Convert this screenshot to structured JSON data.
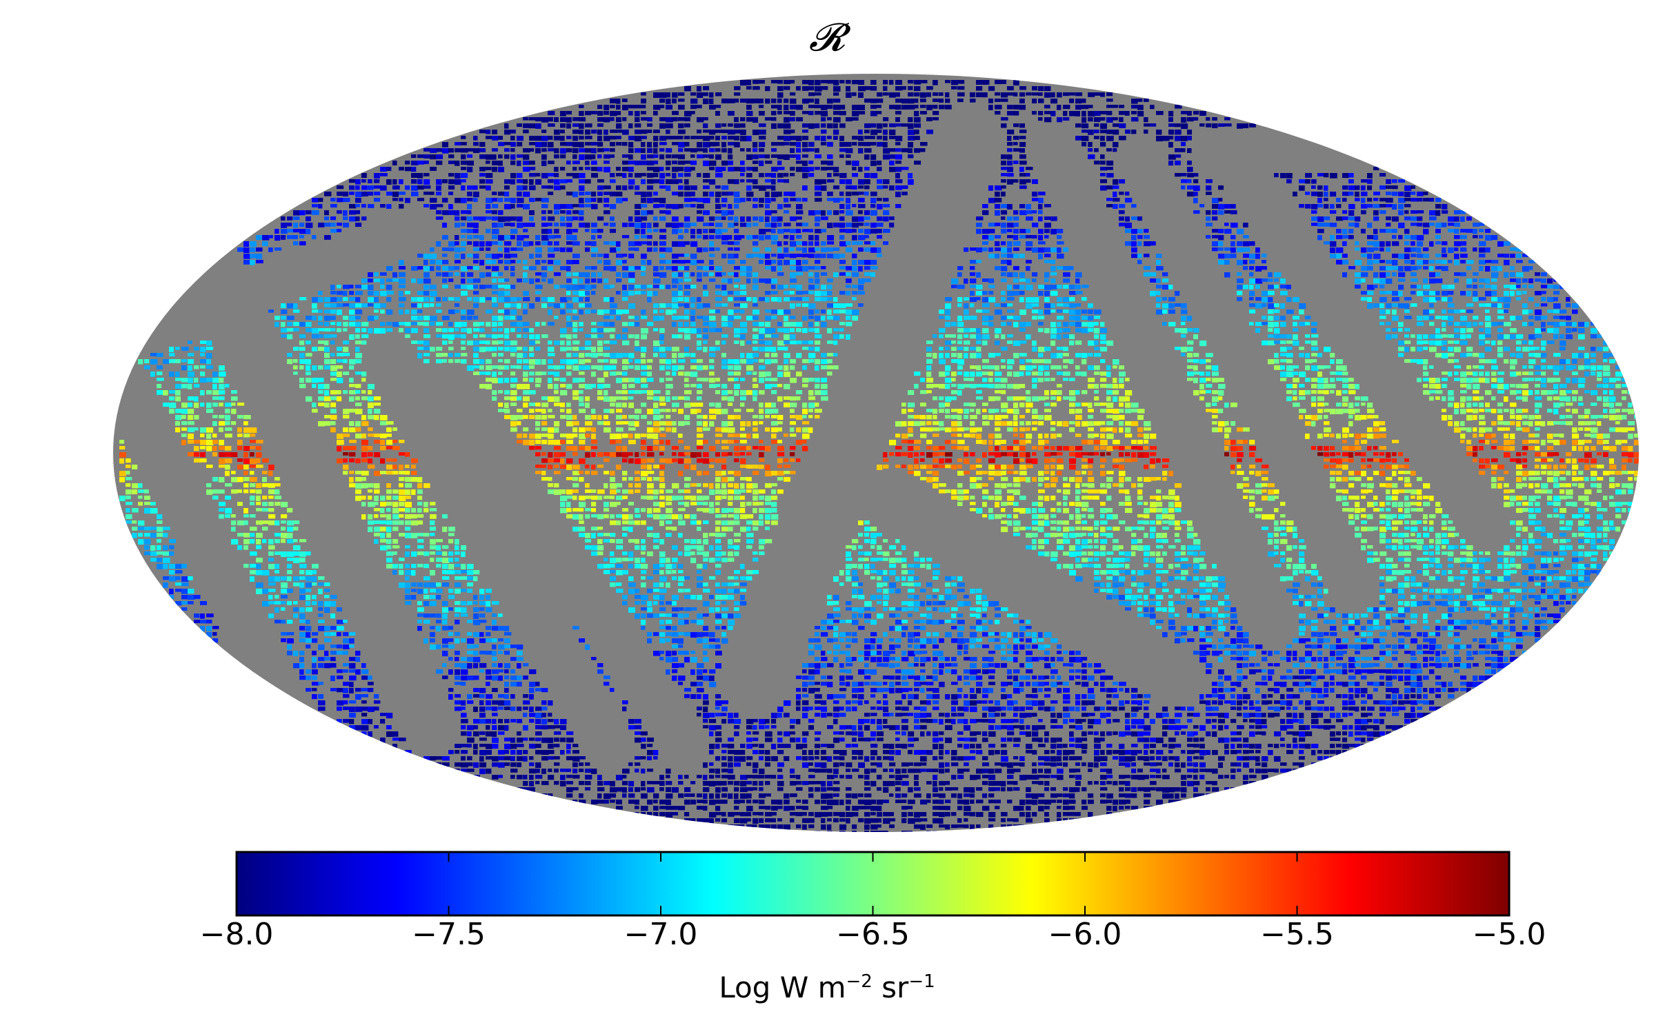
{
  "map": {
    "title": "𝓡",
    "projection": "mollweide",
    "masked_color": "#808080",
    "colormap": "jet",
    "description_of_structure": "galactic plane bright band; high-latitude fainter"
  },
  "chart_data": {
    "type": "heatmap",
    "colorbar": {
      "min": -8.0,
      "max": -5.0,
      "ticks": [
        -8.0,
        -7.5,
        -7.0,
        -6.5,
        -6.0,
        -5.5,
        -5.0
      ],
      "tick_labels": [
        "−8.0",
        "−7.5",
        "−7.0",
        "−6.5",
        "−6.0",
        "−5.5",
        "−5.0"
      ],
      "label_main": "Log W m",
      "label_exp1": "−2",
      "label_mid": " sr",
      "label_exp2": "−1",
      "orientation": "horizontal"
    }
  }
}
